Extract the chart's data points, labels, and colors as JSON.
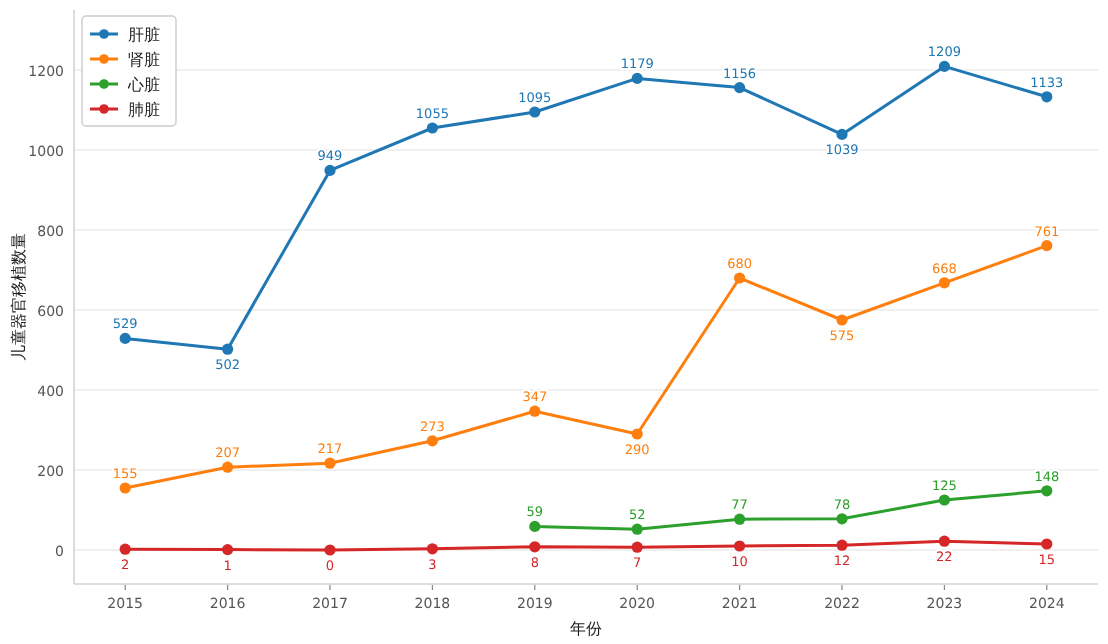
{
  "chart_data": {
    "type": "line",
    "xlabel": "年份",
    "ylabel": "儿童器官移植数量",
    "x": [
      2015,
      2016,
      2017,
      2018,
      2019,
      2020,
      2021,
      2022,
      2023,
      2024
    ],
    "series": [
      {
        "name": "肝脏",
        "color": "#1f77b4",
        "values": [
          529,
          502,
          949,
          1055,
          1095,
          1179,
          1156,
          1039,
          1209,
          1133
        ]
      },
      {
        "name": "肾脏",
        "color": "#ff7f0e",
        "values": [
          155,
          207,
          217,
          273,
          347,
          290,
          680,
          575,
          668,
          761
        ]
      },
      {
        "name": "心脏",
        "color": "#2ca02c",
        "values": [
          null,
          null,
          null,
          null,
          59,
          52,
          77,
          78,
          125,
          148
        ]
      },
      {
        "name": "肺脏",
        "color": "#d62728",
        "values": [
          2,
          1,
          0,
          3,
          8,
          7,
          10,
          12,
          22,
          15
        ]
      }
    ],
    "xlim": [
      2014.5,
      2024.5
    ],
    "ylim": [
      -85,
      1350
    ],
    "xticks": [
      2015,
      2016,
      2017,
      2018,
      2019,
      2020,
      2021,
      2022,
      2023,
      2024
    ],
    "yticks": [
      0,
      200,
      400,
      600,
      800,
      1000,
      1200
    ],
    "grid": "y",
    "legend": "top left",
    "marker": "circle",
    "line_style": "solid",
    "data_labels": true
  }
}
